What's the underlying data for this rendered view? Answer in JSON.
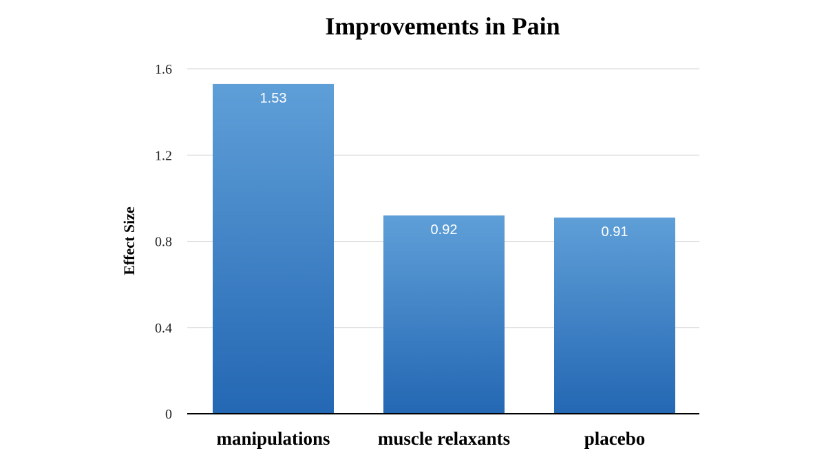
{
  "chart_data": {
    "type": "bar",
    "title": "Improvements in Pain",
    "xlabel": "",
    "ylabel": "Effect Size",
    "categories": [
      "manipulations",
      "muscle relaxants",
      "placebo"
    ],
    "values": [
      1.53,
      0.92,
      0.91
    ],
    "data_labels": [
      "1.53",
      "0.92",
      "0.91"
    ],
    "ylim": [
      0,
      1.6
    ],
    "yticks": [
      0,
      0.4,
      0.8,
      1.2,
      1.6
    ],
    "ytick_labels": [
      "0",
      "0.4",
      "0.8",
      "1.2",
      "1.6"
    ],
    "grid": true,
    "legend": "none",
    "colors": {
      "bar_top": "#5f9fd8",
      "bar_bottom": "#2467b3"
    }
  }
}
